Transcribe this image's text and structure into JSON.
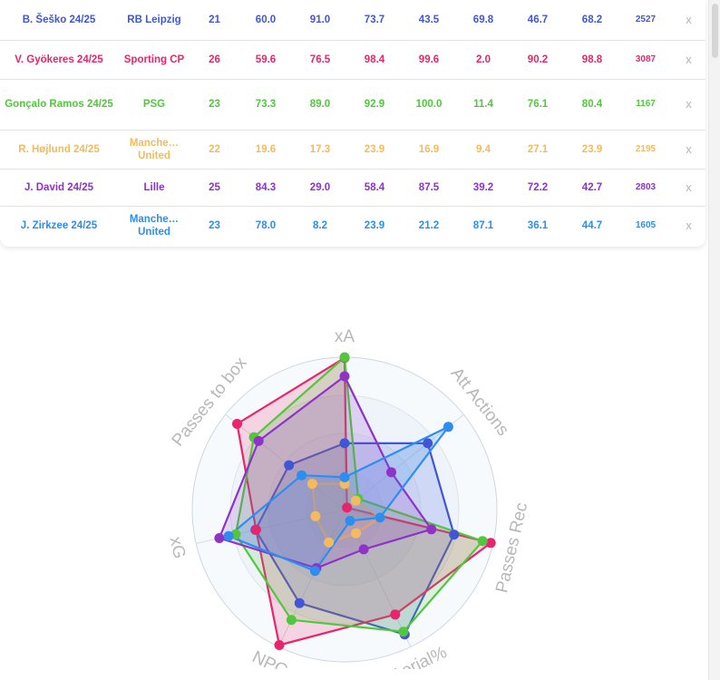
{
  "table": {
    "rows": [
      {
        "player": "B. Šeško 24/25",
        "team": "RB Leipzig",
        "age": "21",
        "v1": "60.0",
        "v2": "91.0",
        "v3": "73.7",
        "v4": "43.5",
        "v5": "69.8",
        "v6": "46.7",
        "v7": "68.2",
        "minutes": "2527",
        "remove": "x",
        "color": "#4056d6"
      },
      {
        "player": "V. Gyökeres 24/25",
        "team": "Sporting CP",
        "age": "26",
        "v1": "59.6",
        "v2": "76.5",
        "v3": "98.4",
        "v4": "99.6",
        "v5": "2.0",
        "v6": "90.2",
        "v7": "98.8",
        "minutes": "3087",
        "remove": "x",
        "color": "#e8246c"
      },
      {
        "player": "Gonçalo Ramos 24/25",
        "team": "PSG",
        "age": "23",
        "v1": "73.3",
        "v2": "89.0",
        "v3": "92.9",
        "v4": "100.0",
        "v5": "11.4",
        "v6": "76.1",
        "v7": "80.4",
        "minutes": "1167",
        "remove": "x",
        "color": "#52c73e"
      },
      {
        "player": "R. Højlund 24/25",
        "team": "Manche… United",
        "age": "22",
        "v1": "19.6",
        "v2": "17.3",
        "v3": "23.9",
        "v4": "16.9",
        "v5": "9.4",
        "v6": "27.1",
        "v7": "23.9",
        "minutes": "2195",
        "remove": "x",
        "color": "#f3bb5e"
      },
      {
        "player": "J. David 24/25",
        "team": "Lille",
        "age": "25",
        "v1": "84.3",
        "v2": "29.0",
        "v3": "58.4",
        "v4": "87.5",
        "v5": "39.2",
        "v6": "72.2",
        "v7": "42.7",
        "minutes": "2803",
        "remove": "x",
        "color": "#8e32c8"
      },
      {
        "player": "J. Zirkzee 24/25",
        "team": "Manche… United",
        "age": "23",
        "v1": "78.0",
        "v2": "8.2",
        "v3": "23.9",
        "v4": "21.2",
        "v5": "87.1",
        "v6": "36.1",
        "v7": "44.7",
        "minutes": "1605",
        "remove": "x",
        "color": "#2b8ef0"
      }
    ]
  },
  "chart_data": {
    "type": "radar",
    "axes": [
      "xA",
      "Att Actions",
      "Passes Rec",
      "Aerial%",
      "NPG",
      "xG",
      "Passes to box"
    ],
    "range": [
      0,
      100
    ],
    "series": [
      {
        "color": "#4056d6",
        "values": [
          43.5,
          69.8,
          73.7,
          91.0,
          68.2,
          60.0,
          46.7
        ]
      },
      {
        "color": "#e8246c",
        "values": [
          99.6,
          2.0,
          98.4,
          76.5,
          98.8,
          59.6,
          90.2
        ]
      },
      {
        "color": "#52c73e",
        "values": [
          100.0,
          11.4,
          92.9,
          89.0,
          80.4,
          73.3,
          76.1
        ]
      },
      {
        "color": "#f3bb5e",
        "values": [
          16.9,
          9.4,
          23.9,
          17.3,
          23.9,
          19.6,
          27.1
        ]
      },
      {
        "color": "#8e32c8",
        "values": [
          87.5,
          39.2,
          58.4,
          29.0,
          42.7,
          84.3,
          72.2
        ]
      },
      {
        "color": "#2b8ef0",
        "values": [
          21.2,
          87.1,
          23.9,
          8.2,
          44.7,
          78.0,
          36.1
        ]
      }
    ]
  }
}
